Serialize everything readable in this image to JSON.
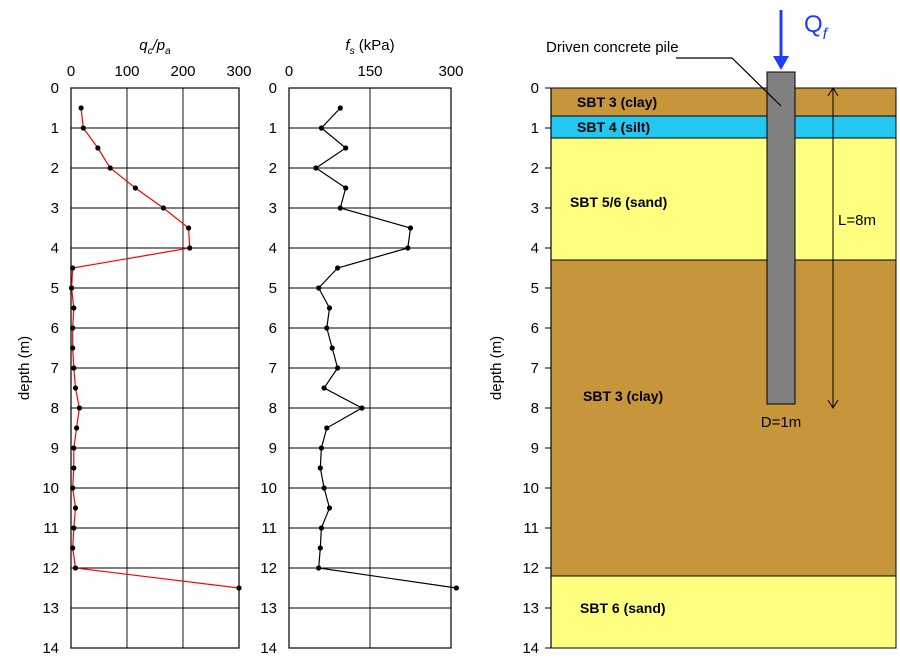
{
  "chart_data": [
    {
      "type": "line",
      "title": "",
      "xlabel_parts": {
        "main": "q",
        "sub1": "c",
        "slash": "/p",
        "sub2": "a"
      },
      "ylabel": "depth (m)",
      "xlim": [
        0,
        300
      ],
      "xticks": [
        0,
        100,
        200,
        300
      ],
      "ylim": [
        0,
        14
      ],
      "yticks": [
        0,
        1,
        2,
        3,
        4,
        5,
        6,
        7,
        8,
        9,
        10,
        11,
        12,
        13,
        14
      ],
      "grid": true,
      "line_color": "#ff0000",
      "marker_color": "#000000",
      "points": [
        [
          18,
          0.5
        ],
        [
          22,
          1
        ],
        [
          48,
          1.5
        ],
        [
          70,
          2
        ],
        [
          115,
          2.5
        ],
        [
          165,
          3
        ],
        [
          210,
          3.5
        ],
        [
          212,
          4
        ],
        [
          3,
          4.5
        ],
        [
          1,
          5
        ],
        [
          5,
          5.5
        ],
        [
          3,
          6
        ],
        [
          3,
          6.5
        ],
        [
          5,
          7
        ],
        [
          8,
          7.5
        ],
        [
          15,
          8
        ],
        [
          10,
          8.5
        ],
        [
          5,
          9
        ],
        [
          5,
          9.5
        ],
        [
          3,
          10
        ],
        [
          8,
          10.5
        ],
        [
          5,
          11
        ],
        [
          3,
          11.5
        ],
        [
          8,
          12
        ],
        [
          300,
          12.5
        ]
      ]
    },
    {
      "type": "line",
      "title": "",
      "xlabel_parts": {
        "main": "f",
        "sub1": "s",
        "rest": " (kPa)"
      },
      "ylabel": "",
      "xlim": [
        0,
        300
      ],
      "xticks": [
        0,
        150,
        300
      ],
      "ylim": [
        0,
        14
      ],
      "yticks": [
        0,
        1,
        2,
        3,
        4,
        5,
        6,
        7,
        8,
        9,
        10,
        11,
        12,
        13,
        14
      ],
      "grid": true,
      "line_color": "#000000",
      "marker_color": "#000000",
      "points": [
        [
          95,
          0.5
        ],
        [
          60,
          1
        ],
        [
          105,
          1.5
        ],
        [
          50,
          2
        ],
        [
          105,
          2.5
        ],
        [
          95,
          3
        ],
        [
          225,
          3.5
        ],
        [
          220,
          4
        ],
        [
          90,
          4.5
        ],
        [
          55,
          5
        ],
        [
          75,
          5.5
        ],
        [
          70,
          6
        ],
        [
          80,
          6.5
        ],
        [
          90,
          7
        ],
        [
          65,
          7.5
        ],
        [
          135,
          8
        ],
        [
          70,
          8.5
        ],
        [
          60,
          9
        ],
        [
          58,
          9.5
        ],
        [
          65,
          10
        ],
        [
          75,
          10.5
        ],
        [
          60,
          11
        ],
        [
          58,
          11.5
        ],
        [
          55,
          12
        ],
        [
          310,
          12.5
        ]
      ]
    },
    {
      "type": "diagram",
      "ylabel": "depth (m)",
      "ylim": [
        0,
        14
      ],
      "yticks": [
        0,
        1,
        2,
        3,
        4,
        5,
        6,
        7,
        8,
        9,
        10,
        11,
        12,
        13,
        14
      ],
      "layers": [
        {
          "label": "SBT 3 (clay)",
          "top": 0,
          "bottom": 0.7,
          "color": "#c8963a"
        },
        {
          "label": "SBT 4 (silt)",
          "top": 0.7,
          "bottom": 1.25,
          "color": "#22c7f2"
        },
        {
          "label": "SBT 5/6 (sand)",
          "top": 1.25,
          "bottom": 4.3,
          "color": "#ffff80"
        },
        {
          "label": "SBT 3 (clay)",
          "top": 4.3,
          "bottom": 12.2,
          "color": "#c8963a"
        },
        {
          "label": "SBT 6 (sand)",
          "top": 12.2,
          "bottom": 14,
          "color": "#ffff80"
        }
      ],
      "pile": {
        "label": "Driven concrete pile",
        "top": -0.4,
        "bottom": 7.9,
        "color": "#808080",
        "length_label": "L=8m",
        "length_top": 0,
        "length_bottom": 8,
        "diameter_label": "D=1m"
      },
      "load_label": {
        "main": "Q",
        "sub": "f"
      },
      "load_color": "#1f3dff"
    }
  ]
}
